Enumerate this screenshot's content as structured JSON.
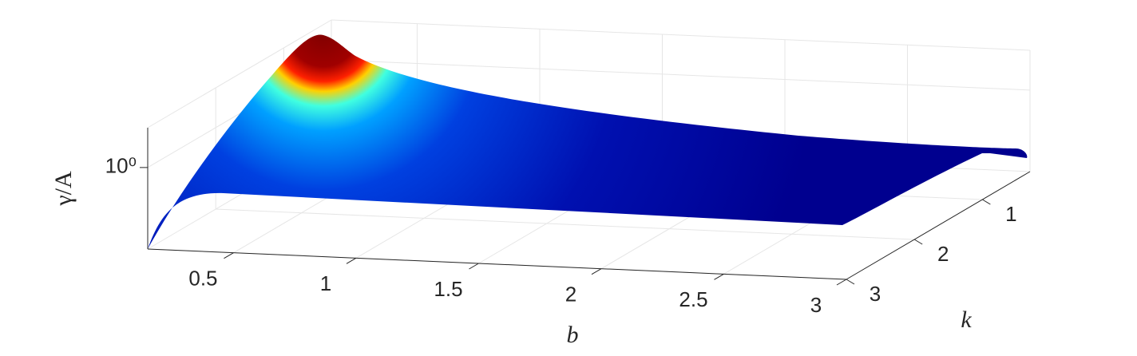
{
  "chart_data": {
    "type": "surface3d",
    "xlabel": "b",
    "ylabel": "k",
    "zlabel": "γ/A",
    "xlim": [
      0.15,
      3
    ],
    "xticks": [
      0.5,
      1,
      1.5,
      2,
      2.5,
      3
    ],
    "ylim": [
      0.3,
      3
    ],
    "yticks": [
      1,
      2,
      3
    ],
    "zlim": [
      0.3,
      1.8
    ],
    "zticks": [
      {
        "value": 1,
        "label": "10⁰"
      }
    ],
    "zscale": "log",
    "grid": true,
    "colormap": "jet"
  }
}
